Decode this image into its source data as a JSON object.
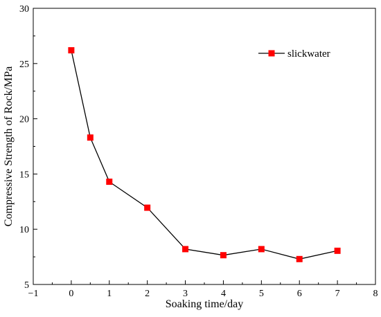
{
  "chart_data": {
    "type": "line",
    "title": "",
    "xlabel": "Soaking time/day",
    "ylabel": "Compressive Strength of Rock/MPa",
    "xlim": [
      -1,
      8
    ],
    "ylim": [
      5,
      30
    ],
    "xticks": [
      -1,
      0,
      1,
      2,
      3,
      4,
      5,
      6,
      7,
      8
    ],
    "xtick_labels": [
      "−1",
      "0",
      "1",
      "2",
      "3",
      "4",
      "5",
      "6",
      "7",
      "8"
    ],
    "yticks": [
      5,
      10,
      15,
      20,
      25,
      30
    ],
    "ytick_labels": [
      "5",
      "10",
      "15",
      "20",
      "25",
      "30"
    ],
    "grid": false,
    "legend_position": "top-right",
    "series": [
      {
        "name": "slickwater",
        "color": "#ff0000",
        "line_color": "#000000",
        "marker": "square",
        "x": [
          0,
          0.5,
          1,
          2,
          3,
          4,
          5,
          6,
          7
        ],
        "y": [
          26.2,
          18.3,
          14.3,
          11.95,
          8.2,
          7.65,
          8.2,
          7.3,
          8.05
        ]
      }
    ]
  }
}
